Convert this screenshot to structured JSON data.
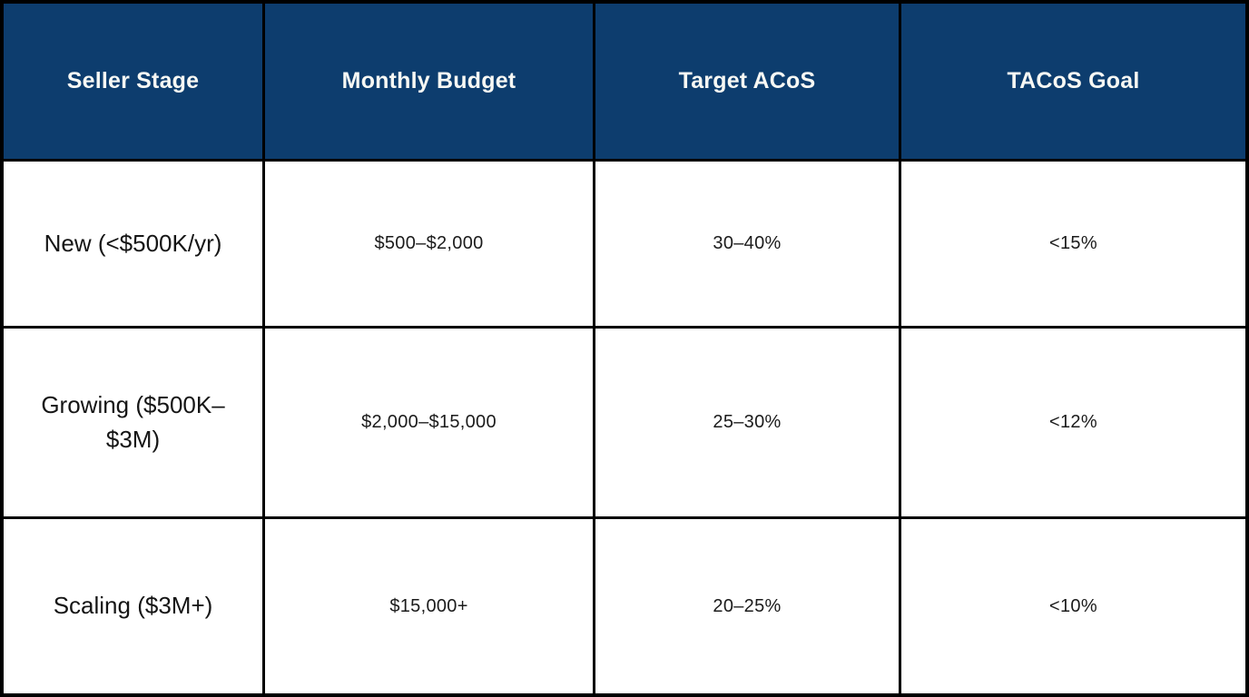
{
  "colors": {
    "header_bg": "#0d3d6e",
    "header_text": "#f7f8f4",
    "body_bg": "#ffffff",
    "body_text": "#1b1b1b",
    "grid_border": "#000000"
  },
  "chart_data": {
    "type": "table",
    "title": "",
    "columns": [
      "Seller Stage",
      "Monthly Budget",
      "Target ACoS",
      "TACoS Goal"
    ],
    "rows": [
      [
        "New (<$500K/yr)",
        "$500–$2,000",
        "30–40%",
        "<15%"
      ],
      [
        "Growing ($500K–$3M)",
        "$2,000–$15,000",
        "25–30%",
        "<12%"
      ],
      [
        "Scaling ($3M+)",
        "$15,000+",
        "20–25%",
        "<10%"
      ]
    ]
  }
}
